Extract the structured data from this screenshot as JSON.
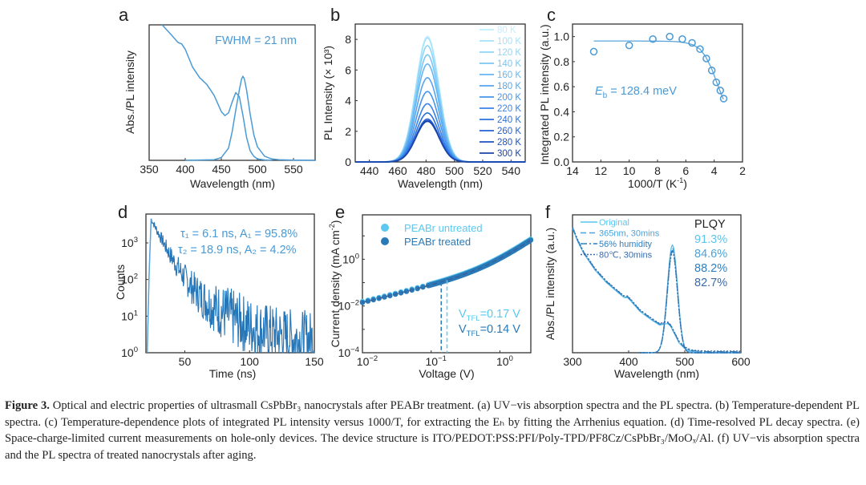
{
  "figure": {
    "caption": {
      "label": "Figure 3.",
      "text": " Optical and electric properties of ultrasmall CsPbBr₃ nanocrystals after PEABr treatment. (a) UV−vis absorption spectra and the PL spectra. (b) Temperature-dependent PL spectra. (c) Temperature-dependence plots of integrated PL intensity versus 1000/T, for extracting the Eₕ by fitting the Arrhenius equation. (d) Time-resolved PL decay spectra. (e) Space-charge-limited current measurements on hole-only devices. The device structure is ITO/PEDOT:PSS:PFI/Poly-TPD/PF8Cz/CsPbBr₃/MoOₓ/Al. (f) UV−vis absorption spectra and the PL spectra of treated nanocrystals after aging."
    }
  },
  "chart_data": [
    {
      "panel": "a",
      "type": "line",
      "title": "",
      "xlabel": "Wavelength (nm)",
      "ylabel": "Abs./PL intensity",
      "xlim": [
        350,
        580
      ],
      "ylim": [
        0,
        1.0
      ],
      "xticks": [
        350,
        400,
        450,
        500,
        550
      ],
      "annotation": "FWHM = 21 nm",
      "series": [
        {
          "name": "Absorption",
          "x": [
            368,
            380,
            390,
            395,
            400,
            410,
            420,
            430,
            440,
            450,
            455,
            460,
            465,
            470,
            475,
            480,
            485,
            490,
            495,
            500,
            510,
            520
          ],
          "y": [
            1.0,
            0.93,
            0.87,
            0.86,
            0.82,
            0.69,
            0.61,
            0.56,
            0.48,
            0.36,
            0.33,
            0.35,
            0.43,
            0.5,
            0.47,
            0.33,
            0.17,
            0.07,
            0.03,
            0.01,
            0.003,
            0.0
          ]
        },
        {
          "name": "PL",
          "x": [
            400,
            440,
            450,
            460,
            465,
            470,
            475,
            478,
            480,
            482,
            485,
            490,
            495,
            500,
            510,
            520,
            530,
            550,
            580
          ],
          "y": [
            0,
            0.005,
            0.02,
            0.09,
            0.21,
            0.37,
            0.52,
            0.6,
            0.62,
            0.6,
            0.52,
            0.34,
            0.19,
            0.1,
            0.03,
            0.01,
            0.004,
            0.001,
            0
          ]
        }
      ]
    },
    {
      "panel": "b",
      "type": "line",
      "xlabel": "Wavelength (nm)",
      "ylabel": "PL Intensity (× 10³)",
      "xlim": [
        430,
        550
      ],
      "ylim": [
        0,
        9
      ],
      "xticks": [
        440,
        460,
        480,
        500,
        520,
        540
      ],
      "yticks": [
        0,
        2,
        4,
        6,
        8
      ],
      "peak_nm": 481,
      "fwhm_nm": 19,
      "series": [
        {
          "name": "80 K",
          "peak": 8.2,
          "color": "#bfefff"
        },
        {
          "name": "100 K",
          "peak": 8.1,
          "color": "#a5e2fb"
        },
        {
          "name": "120 K",
          "peak": 7.6,
          "color": "#8fd5f8"
        },
        {
          "name": "140 K",
          "peak": 7.0,
          "color": "#7ac6f5"
        },
        {
          "name": "160 K",
          "peak": 6.4,
          "color": "#67b6f2"
        },
        {
          "name": "180 K",
          "peak": 5.5,
          "color": "#56a5ef"
        },
        {
          "name": "200 K",
          "peak": 4.6,
          "color": "#4694ec"
        },
        {
          "name": "220 K",
          "peak": 3.8,
          "color": "#3882e8"
        },
        {
          "name": "240 K",
          "peak": 3.2,
          "color": "#2c70e0"
        },
        {
          "name": "260 K",
          "peak": 2.8,
          "color": "#2460d4"
        },
        {
          "name": "280 K",
          "peak": 2.7,
          "color": "#1e52c2"
        },
        {
          "name": "300 K",
          "peak": 2.65,
          "color": "#1a44a8"
        }
      ],
      "legend": "top-right"
    },
    {
      "panel": "c",
      "type": "scatter",
      "xlabel": "1000/T (K⁻¹)",
      "ylabel": "Integrated PL intensity (a.u.)",
      "xlim": [
        14,
        2
      ],
      "ylim": [
        0,
        1.1
      ],
      "xticks": [
        14,
        12,
        10,
        8,
        6,
        4,
        2
      ],
      "yticks": [
        0.0,
        0.2,
        0.4,
        0.6,
        0.8,
        1.0
      ],
      "annotation": "E_b = 128.4 meV",
      "points": {
        "x": [
          12.5,
          10.0,
          8.33,
          7.14,
          6.25,
          5.56,
          5.0,
          4.55,
          4.17,
          3.85,
          3.57,
          3.33
        ],
        "y": [
          0.88,
          0.93,
          0.98,
          1.0,
          0.98,
          0.95,
          0.9,
          0.825,
          0.73,
          0.635,
          0.57,
          0.505
        ]
      },
      "fit": {
        "x": [
          12.5,
          10,
          8,
          7,
          6.5,
          6,
          5.5,
          5,
          4.6,
          4.2,
          3.9,
          3.6,
          3.35
        ],
        "y": [
          0.965,
          0.965,
          0.964,
          0.962,
          0.958,
          0.95,
          0.935,
          0.9,
          0.84,
          0.75,
          0.66,
          0.57,
          0.5
        ]
      }
    },
    {
      "panel": "d",
      "type": "line",
      "xlabel": "Time (ns)",
      "ylabel": "Counts",
      "xlim": [
        20,
        150
      ],
      "ylim_log10": [
        0,
        3.75
      ],
      "xticks": [
        50,
        100,
        150
      ],
      "yticks": [
        "10⁰",
        "10¹",
        "10²",
        "10³"
      ],
      "annotations": [
        "τ₁ = 6.1 ns, A₁ = 95.8%",
        "τ₂ = 18.9 ns, A₂ = 4.2%"
      ],
      "decay": {
        "t0": 24,
        "peak_counts": 4500,
        "tau1_ns": 6.1,
        "A1": 0.958,
        "tau2_ns": 18.9,
        "A2": 0.042,
        "background": 2
      }
    },
    {
      "panel": "e",
      "type": "scatter",
      "xlabel": "Voltage (V)",
      "ylabel": "Current density (mA cm⁻²)",
      "xlim_log10": [
        -2,
        0.45
      ],
      "ylim_log10": [
        -4,
        1.9
      ],
      "xticks": [
        "10⁻²",
        "10⁻¹",
        "10⁰"
      ],
      "yticks": [
        "10⁻⁴",
        "10⁻²",
        "10⁰"
      ],
      "series": [
        {
          "name": "PEABr untreated",
          "color": "#5ac8f0",
          "vtfl": 0.17,
          "label": "V_TFL=0.17 V"
        },
        {
          "name": "PEABr treated",
          "color": "#2a7ab8",
          "vtfl": 0.14,
          "label": "V_TFL=0.14 V"
        }
      ],
      "legend": "top-left"
    },
    {
      "panel": "f",
      "type": "line",
      "xlabel": "Wavelength (nm)",
      "ylabel": "Abs./PL intensity (a.u.)",
      "xlim": [
        300,
        600
      ],
      "xticks": [
        300,
        400,
        500,
        600
      ],
      "legend": "top-left",
      "plqy_title": "PLQY",
      "series": [
        {
          "name": "Original",
          "style": "solid",
          "plqy": "91.3%",
          "color": "#5cc4ee"
        },
        {
          "name": "365nm, 30mins",
          "style": "dash",
          "plqy": "84.6%",
          "color": "#4aa3dc"
        },
        {
          "name": "56% humidity",
          "style": "dashdot",
          "plqy": "88.2%",
          "color": "#2f7fc0"
        },
        {
          "name": "80℃, 30mins",
          "style": "dot",
          "plqy": "82.7%",
          "color": "#3a6aa8"
        }
      ]
    }
  ]
}
